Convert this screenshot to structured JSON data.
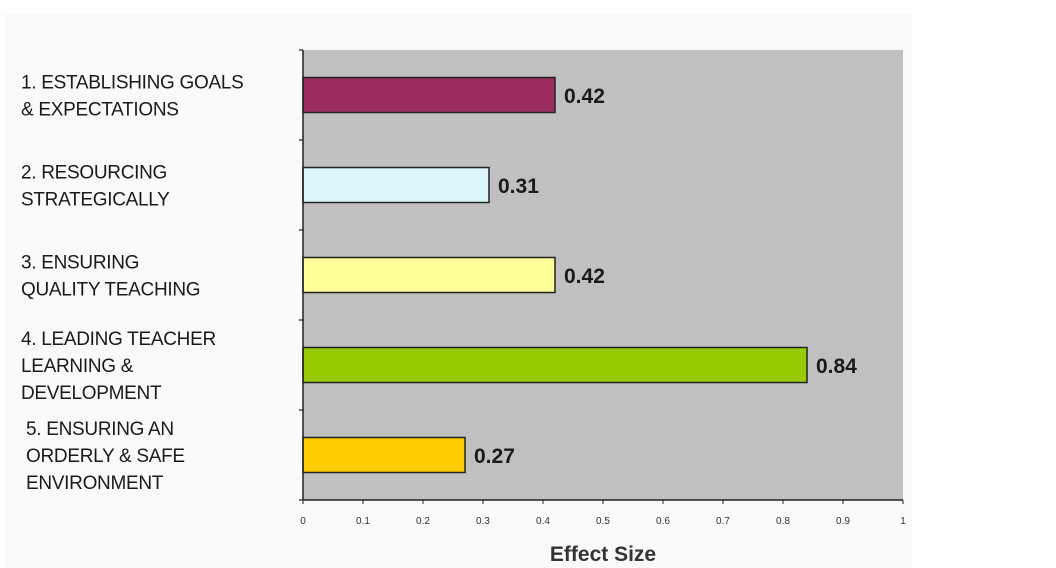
{
  "chart_data": {
    "type": "bar",
    "orientation": "horizontal",
    "categories": [
      [
        "1. ESTABLISHING GOALS",
        "& EXPECTATIONS"
      ],
      [
        "2. RESOURCING",
        "STRATEGICALLY"
      ],
      [
        "3. ENSURING",
        "QUALITY TEACHING"
      ],
      [
        "4. LEADING TEACHER",
        "LEARNING &",
        "DEVELOPMENT"
      ],
      [
        "5. ENSURING AN",
        "ORDERLY & SAFE",
        "ENVIRONMENT"
      ]
    ],
    "values": [
      0.42,
      0.31,
      0.42,
      0.84,
      0.27
    ],
    "value_labels": [
      "0.42",
      "0.31",
      "0.42",
      "0.84",
      "0.27"
    ],
    "bar_colors": [
      "#9b2d5f",
      "#ddf6fb",
      "#ffff99",
      "#99cc00",
      "#ffcc00"
    ],
    "plot_background": "#c0c0c0",
    "xlabel": "Effect Size",
    "xlim": [
      0,
      1
    ],
    "x_ticks": [
      0,
      0.1,
      0.2,
      0.3,
      0.4,
      0.5,
      0.6,
      0.7,
      0.8,
      0.9,
      1
    ],
    "x_tick_labels": [
      "0",
      "0.1",
      "0.2",
      "0.3",
      "0.4",
      "0.5",
      "0.6",
      "0.7",
      "0.8",
      "0.9",
      "1"
    ],
    "grid": false,
    "legend": "none"
  }
}
